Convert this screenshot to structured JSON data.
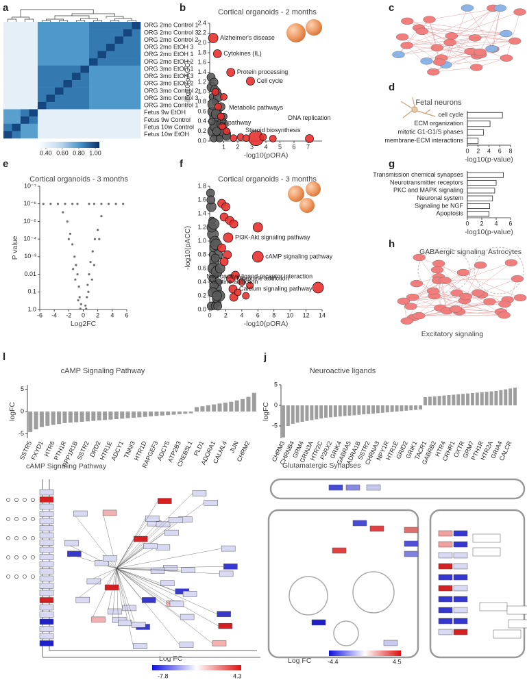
{
  "panel_labels": [
    "a",
    "b",
    "c",
    "d",
    "e",
    "f",
    "g",
    "h",
    "l",
    "j"
  ],
  "chart_data": [
    {
      "type": "heatmap",
      "categories": [
        "ORG 2mo Control 1",
        "ORG 2mo Control 3",
        "ORG 2mo Control 2",
        "ORG 2mo EtOH 3",
        "ORG 2mo EtOH 1",
        "ORG 2mo EtOH 2",
        "ORG 3mo EtOH 1",
        "ORG 3mo EtOH 3",
        "ORG 3mo EtOH 2",
        "ORG 3mo Control 2",
        "ORG 3mo Control 3",
        "ORG 3mo Control 1",
        "Fetus 9w EtOH",
        "Fetus 9w Control",
        "Fetus 10w Control",
        "Fetus 10w EtOH"
      ],
      "values": [
        [
          0.42,
          0.42,
          0.42,
          0.42,
          0.8,
          0.8,
          0.8,
          0.8,
          0.8,
          0.8,
          0.88,
          0.88,
          0.88,
          0.88,
          0.88,
          1.0
        ],
        [
          0.42,
          0.42,
          0.42,
          0.42,
          0.8,
          0.8,
          0.8,
          0.8,
          0.8,
          0.8,
          0.88,
          0.88,
          0.88,
          0.88,
          1.0,
          0.88
        ],
        [
          0.42,
          0.42,
          0.42,
          0.42,
          0.8,
          0.8,
          0.8,
          0.8,
          0.8,
          0.8,
          0.88,
          0.88,
          0.88,
          1.0,
          0.88,
          0.88
        ],
        [
          0.42,
          0.42,
          0.42,
          0.42,
          0.8,
          0.8,
          0.8,
          0.8,
          0.8,
          0.8,
          0.88,
          0.88,
          1.0,
          0.88,
          0.88,
          0.88
        ],
        [
          0.42,
          0.42,
          0.42,
          0.42,
          0.8,
          0.8,
          0.8,
          0.8,
          0.8,
          0.8,
          0.88,
          1.0,
          0.88,
          0.88,
          0.88,
          0.88
        ],
        [
          0.42,
          0.42,
          0.42,
          0.42,
          0.8,
          0.8,
          0.8,
          0.8,
          0.8,
          0.8,
          1.0,
          0.88,
          0.88,
          0.88,
          0.88,
          0.88
        ],
        [
          0.42,
          0.42,
          0.42,
          0.42,
          0.88,
          0.88,
          0.88,
          0.88,
          0.88,
          1.0,
          0.8,
          0.8,
          0.8,
          0.8,
          0.8,
          0.8
        ],
        [
          0.42,
          0.42,
          0.42,
          0.42,
          0.88,
          0.88,
          0.88,
          0.88,
          1.0,
          0.88,
          0.8,
          0.8,
          0.8,
          0.8,
          0.8,
          0.8
        ],
        [
          0.42,
          0.42,
          0.42,
          0.42,
          0.88,
          0.88,
          0.88,
          1.0,
          0.88,
          0.88,
          0.8,
          0.8,
          0.8,
          0.8,
          0.8,
          0.8
        ],
        [
          0.42,
          0.42,
          0.42,
          0.42,
          0.88,
          0.88,
          1.0,
          0.88,
          0.88,
          0.88,
          0.8,
          0.8,
          0.8,
          0.8,
          0.8,
          0.8
        ],
        [
          0.42,
          0.42,
          0.42,
          0.42,
          0.88,
          1.0,
          0.88,
          0.88,
          0.88,
          0.88,
          0.8,
          0.8,
          0.8,
          0.8,
          0.8,
          0.8
        ],
        [
          0.42,
          0.42,
          0.42,
          0.42,
          1.0,
          0.88,
          0.88,
          0.88,
          0.88,
          0.88,
          0.8,
          0.8,
          0.8,
          0.8,
          0.8,
          0.8
        ],
        [
          0.78,
          0.78,
          0.88,
          1.0,
          0.42,
          0.42,
          0.42,
          0.42,
          0.42,
          0.42,
          0.42,
          0.42,
          0.42,
          0.42,
          0.42,
          0.42
        ],
        [
          0.78,
          0.78,
          1.0,
          0.88,
          0.42,
          0.42,
          0.42,
          0.42,
          0.42,
          0.42,
          0.42,
          0.42,
          0.42,
          0.42,
          0.42,
          0.42
        ],
        [
          0.88,
          1.0,
          0.78,
          0.78,
          0.42,
          0.42,
          0.42,
          0.42,
          0.42,
          0.42,
          0.42,
          0.42,
          0.42,
          0.42,
          0.42,
          0.42
        ],
        [
          1.0,
          0.88,
          0.78,
          0.78,
          0.42,
          0.42,
          0.42,
          0.42,
          0.42,
          0.42,
          0.42,
          0.42,
          0.42,
          0.42,
          0.42,
          0.42
        ]
      ],
      "zlim": [
        0.3,
        1.05
      ],
      "zticks": [
        {
          "value": 0.4,
          "label": "0.40"
        },
        {
          "value": 0.6,
          "label": "0.60"
        },
        {
          "value": 0.8,
          "label": "0.80"
        },
        {
          "value": 1.0,
          "label": "1.00"
        }
      ]
    },
    {
      "type": "bubble",
      "title": "Cortical organoids - 2 months",
      "xlabel": "-log10(pORA)",
      "ylabel": "-log10(pACC)",
      "xlim": [
        0,
        8
      ],
      "xticks": [
        1,
        2,
        3,
        4,
        5,
        6,
        7
      ],
      "ylim": [
        0,
        2.4
      ],
      "yticks": [
        {
          "value": 0,
          "label": "0.0"
        },
        0.2,
        0.4,
        0.6,
        0.8,
        {
          "value": 1,
          "label": "1.0"
        },
        1.2,
        1.4,
        1.6,
        1.8,
        {
          "value": 2,
          "label": "2.0"
        },
        2.2,
        2.4
      ],
      "series": [
        {
          "color": "#5a5a5a",
          "x": [
            0.1,
            0.15,
            0.2,
            0.25,
            0.3,
            0.35,
            0.4,
            0.45,
            0.5,
            0.55,
            0.6,
            0.7,
            0.8,
            0.9,
            1.0,
            1.1,
            1.2,
            0.2,
            0.3,
            0.4,
            0.5,
            0.6,
            0.15,
            0.25,
            0.35,
            0.45,
            0.7,
            0.9
          ],
          "y": [
            1.3,
            1.1,
            0.9,
            0.2,
            1.2,
            0.5,
            0.8,
            0.3,
            1.0,
            0.1,
            0.6,
            0.4,
            0.7,
            0.2,
            0.5,
            0.15,
            0.1,
            0.6,
            0.05,
            0.3,
            0.2,
            0.9,
            0.4,
            0.75,
            1.05,
            0.55,
            0.05,
            0.35
          ],
          "size": [
            6,
            7,
            5,
            8,
            6,
            7,
            5,
            8,
            6,
            7,
            5,
            8,
            6,
            7,
            5,
            8,
            6,
            7,
            5,
            8,
            6,
            7,
            5,
            8,
            6,
            7,
            5,
            8
          ]
        },
        {
          "color": "#e8312f",
          "x": [
            0.25,
            0.55,
            1.5,
            2.9,
            1.7,
            3.3,
            4.5,
            7.1,
            0.4,
            0.6,
            0.9,
            1.2,
            0.8,
            2.2,
            2.6,
            3.8,
            1.0
          ],
          "y": [
            2.1,
            1.78,
            1.4,
            1.22,
            0.06,
            0.06,
            0.05,
            0.05,
            1.0,
            0.7,
            0.3,
            0.2,
            0.5,
            0.08,
            0.06,
            0.08,
            0.9
          ],
          "size": [
            7,
            6,
            6,
            6,
            5,
            11,
            5,
            6,
            5,
            5,
            5,
            5,
            5,
            5,
            5,
            5,
            5
          ],
          "labels": [
            "Alzheimer's disease",
            "Cytokines (IL)",
            "Protein processing",
            "Cell cycle",
            "p53 pathway",
            "Metabolic pathways",
            "Steroid biosynthesis",
            "DNA replication",
            null,
            null,
            null,
            null,
            null,
            null,
            null,
            null,
            null
          ]
        }
      ]
    },
    {
      "type": "hbar",
      "title": "Fetal neurons",
      "xlabel": "-log10(p-value)",
      "categories": [
        "cell cycle",
        "ECM organization",
        "mitotic G1-G1/S phases",
        "membrane-ECM interactions"
      ],
      "values": [
        6.5,
        4.2,
        3.0,
        2.0
      ],
      "xlim": [
        0,
        8
      ],
      "xticks": [
        0,
        2,
        4,
        6,
        8
      ]
    },
    {
      "type": "volcano",
      "title": "Cortical organoids - 3 months",
      "xlabel": "Log2FC",
      "ylabel": "P value",
      "color": "#6e6e6e",
      "xlim": [
        -6,
        6
      ],
      "xticks": [
        -6,
        -4,
        -2,
        0,
        2,
        4,
        6
      ],
      "ylog": true,
      "ylim": [
        1,
        1e-07
      ],
      "yticks": [
        {
          "value": 1,
          "label": "1.0"
        },
        0.1,
        0.01,
        {
          "value": 0.001,
          "label": "10⁻³"
        },
        {
          "value": 0.0001,
          "label": "10⁻⁴"
        },
        {
          "value": 1e-05,
          "label": "10⁻⁵"
        },
        {
          "value": 1e-06,
          "label": "10⁻⁶"
        },
        {
          "value": 1e-07,
          "label": "10⁻⁷"
        }
      ],
      "x": [
        -0.3,
        -0.5,
        -0.6,
        -0.8,
        -1,
        -1.2,
        -1.5,
        -1.8,
        -2.2,
        -2.8,
        -0.4,
        -0.7,
        -1.1,
        -1.4,
        -2,
        -3.5,
        -4.5,
        -5.5,
        -1.5,
        -0.8,
        -2.5,
        0.3,
        0.5,
        0.6,
        0.8,
        1,
        1.3,
        1.6,
        2,
        2.5,
        0.4,
        0.7,
        1.2,
        1.5,
        2.2,
        0.8,
        1.5,
        2.5,
        3.5,
        4.5,
        5.5
      ],
      "y": [
        0.5,
        0.2,
        0.05,
        0.01,
        0.003,
        0.001,
        0.0002,
        5e-05,
        1e-05,
        3e-06,
        0.9,
        0.3,
        0.02,
        0.005,
        0.0001,
        1e-06,
        1e-06,
        1e-06,
        1e-06,
        1e-06,
        1e-06,
        0.6,
        0.2,
        0.04,
        0.01,
        0.002,
        0.0005,
        0.0001,
        3e-05,
        5e-06,
        0.9,
        0.1,
        0.02,
        0.003,
        0.0001,
        1e-06,
        1e-06,
        1e-06,
        1e-06,
        1e-06,
        1e-06
      ]
    },
    {
      "type": "bubble",
      "title": "Cortical organoids - 3 months",
      "xlabel": "-log10(pORA)",
      "ylabel": "-log10(pACC)",
      "xlim": [
        0,
        14
      ],
      "xticks": [
        0,
        2,
        4,
        6,
        8,
        10,
        12,
        14
      ],
      "ylim": [
        0,
        1.8
      ],
      "yticks": [
        {
          "value": 0,
          "label": "0.0"
        },
        0.2,
        0.4,
        0.6,
        0.8,
        {
          "value": 1,
          "label": "1.0"
        },
        1.2,
        1.4,
        1.6,
        1.8
      ],
      "series": [
        {
          "color": "#5a5a5a",
          "x": [
            0.1,
            0.2,
            0.3,
            0.4,
            0.5,
            0.6,
            0.7,
            0.8,
            0.9,
            1.0,
            1.1,
            1.2,
            0.15,
            0.25,
            0.35,
            0.45,
            0.55,
            0.65,
            0.75,
            0.85,
            0.2,
            0.4,
            0.6,
            0.8,
            1.0,
            1.3,
            0.3,
            0.5,
            0.7,
            0.9
          ],
          "y": [
            1.7,
            1.5,
            1.3,
            1.1,
            0.9,
            0.7,
            0.5,
            0.3,
            0.1,
            0.8,
            0.4,
            0.2,
            1.6,
            1.2,
            0.8,
            0.6,
            0.35,
            1.0,
            0.15,
            0.55,
            0.05,
            0.25,
            0.05,
            0.95,
            0.05,
            0.6,
            0.45,
            1.25,
            0.75,
            0.2
          ],
          "size": [
            6,
            7,
            5,
            8,
            6,
            7,
            5,
            8,
            6,
            7,
            5,
            8,
            6,
            7,
            5,
            8,
            6,
            7,
            5,
            8,
            6,
            7,
            5,
            8,
            6,
            7,
            5,
            8,
            6,
            7
          ]
        },
        {
          "color": "#e8312f",
          "x": [
            2.3,
            6.0,
            13.5,
            2.6,
            2.9,
            3.0,
            1.5,
            2.0,
            1.8,
            2.5,
            3.0,
            6.0,
            2.2,
            1.8,
            3.2,
            4.0,
            5.0,
            3.5,
            4.5,
            1.5
          ],
          "y": [
            1.05,
            0.77,
            0.32,
            0.45,
            0.3,
            0.18,
            1.55,
            1.5,
            1.35,
            1.3,
            1.25,
            1.2,
            0.8,
            0.7,
            0.5,
            0.4,
            0.35,
            0.25,
            0.2,
            0.9
          ],
          "size": [
            7,
            8,
            8,
            6,
            6,
            6,
            6,
            6,
            6,
            6,
            6,
            7,
            6,
            6,
            6,
            5,
            5,
            5,
            5,
            6
          ],
          "labels": [
            "PI3K-Akt signaling pathway",
            "cAMP signaling pathway",
            "Neuroactive ligand-receptor interaction",
            "Morphine addiction",
            "Calcium signaling pathway",
            "Nicotine addiction",
            null,
            null,
            null,
            null,
            null,
            null,
            null,
            null,
            null,
            null,
            null,
            null,
            null,
            null
          ]
        }
      ]
    },
    {
      "type": "hbar",
      "xlabel": "-log10(p-value)",
      "categories": [
        "Transmission chemical synapses",
        "Neurotransmitter receptors",
        "PKC and MAPK signaling",
        "Neuronal system",
        "Signaling be NGF",
        "Apoptosis"
      ],
      "values": [
        5.0,
        4.0,
        3.8,
        3.5,
        3.1,
        3.0
      ],
      "xlim": [
        0,
        6
      ],
      "xticks": [
        0,
        2,
        4,
        6
      ]
    },
    {
      "type": "bar",
      "title": "cAMP Signaling Pathway",
      "ylabel": "logFC",
      "color": "#9e9e9e",
      "ylim": [
        -6,
        6
      ],
      "yticks": [
        -5,
        0,
        5
      ],
      "categories": [
        "SSTR5",
        null,
        "FXYD1",
        null,
        "HTR6",
        null,
        "PTH1R",
        null,
        "PPP1R1B",
        null,
        "SSTR2",
        null,
        "DRD2",
        null,
        "HTR1E",
        null,
        "ADCY1",
        null,
        "TNNI3",
        null,
        "HTR1D",
        null,
        "RAPGEF3",
        null,
        "ADCY5",
        null,
        "ATP2B3",
        null,
        "CREB3L1",
        null,
        "PLD1",
        null,
        "ADORA1",
        null,
        "CALML4",
        null,
        "JUN",
        null,
        "CHRM2",
        null
      ],
      "values": [
        -4.6,
        -4.0,
        -3.5,
        -3.2,
        -3.0,
        -2.8,
        -2.6,
        -2.5,
        -2.4,
        -2.3,
        -2.2,
        -2.1,
        -2.0,
        -1.9,
        -1.8,
        -1.7,
        -1.6,
        -1.5,
        -1.4,
        -1.3,
        -1.2,
        -1.1,
        -1.0,
        -0.9,
        -0.8,
        -0.7,
        -0.6,
        -0.5,
        -0.4,
        1.0,
        1.2,
        1.4,
        1.6,
        1.8,
        2.0,
        2.2,
        2.5,
        2.8,
        3.3,
        4.2
      ]
    },
    {
      "type": "bar",
      "title": "Neuroactive ligands",
      "ylabel": "logFC",
      "color": "#9e9e9e",
      "ylim": [
        -8,
        5
      ],
      "yticks": [
        -5,
        0,
        5
      ],
      "categories": [
        "CHRM3",
        null,
        "CHRNB4",
        null,
        "GRM4",
        null,
        "GRIN3A",
        null,
        "HTR2C",
        null,
        "P2RX2",
        null,
        "GRIK4",
        null,
        "GABRA5",
        null,
        "ADRA1B",
        null,
        "SSTR2",
        null,
        "CHRNA3",
        null,
        "NPY1R",
        null,
        "HTR1E",
        null,
        "GRID2",
        null,
        "GRIK1",
        null,
        "TACR1",
        null,
        "GABRB2",
        null,
        "HTR4",
        null,
        "CRHR1",
        null,
        "OXTR",
        null,
        "GRM7",
        null,
        "PTH1R",
        null,
        "HTR2A",
        null,
        "GRIA4",
        null,
        "CALCR",
        null
      ],
      "values": [
        -7.8,
        -5.0,
        -4.5,
        -4.2,
        -4.0,
        -3.8,
        -3.6,
        -3.4,
        -3.2,
        -3.0,
        -2.9,
        -2.8,
        -2.7,
        -2.6,
        -2.5,
        -2.4,
        -2.3,
        -2.2,
        -2.1,
        -2.0,
        -1.9,
        -1.8,
        -1.7,
        -1.6,
        -1.5,
        -1.4,
        -1.3,
        -1.2,
        -1.1,
        -1.0,
        2.0,
        2.1,
        2.2,
        2.3,
        2.4,
        2.5,
        2.6,
        2.7,
        2.8,
        2.9,
        3.0,
        3.1,
        3.2,
        3.3,
        3.4,
        3.5,
        3.7,
        3.9,
        4.1,
        4.3
      ]
    }
  ],
  "network_h": {
    "labels": [
      "GABAergic signaling",
      "Astrocytes",
      "Excitatory signaling"
    ]
  },
  "pathways": [
    {
      "title": "cAMP Signaling Pathway",
      "colorbar_label": "Log FC",
      "lim": [
        -7.8,
        4.3
      ]
    },
    {
      "title": "Glutamatergic Synapses",
      "colorbar_label": "Log FC",
      "lim": [
        -4.4,
        4.5
      ]
    }
  ]
}
